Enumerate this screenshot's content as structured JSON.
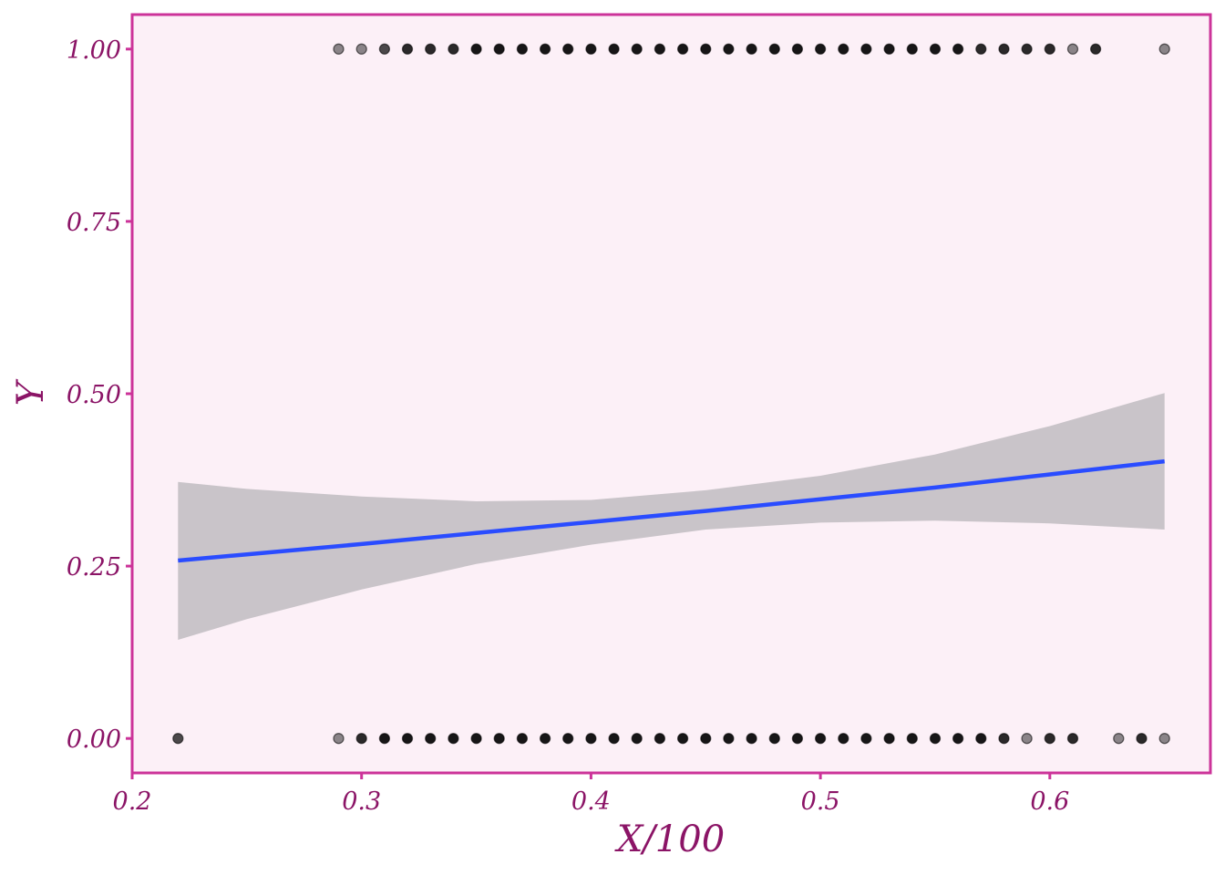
{
  "chart_data": {
    "type": "scatter",
    "xlabel": "X/100",
    "ylabel": "Y",
    "xlim": [
      0.2,
      0.67
    ],
    "ylim": [
      -0.05,
      1.05
    ],
    "x_ticks": [
      0.2,
      0.3,
      0.4,
      0.5,
      0.6
    ],
    "x_tick_labels": [
      "0.2",
      "0.3",
      "0.4",
      "0.5",
      "0.6"
    ],
    "y_ticks": [
      0.0,
      0.25,
      0.5,
      0.75,
      1.0
    ],
    "y_tick_labels": [
      "0.00",
      "0.25",
      "0.50",
      "0.75",
      "1.00"
    ],
    "grid": false,
    "legend": "none",
    "points_y1": [
      {
        "x": 0.29,
        "n": 1
      },
      {
        "x": 0.3,
        "n": 1
      },
      {
        "x": 0.31,
        "n": 2
      },
      {
        "x": 0.32,
        "n": 3
      },
      {
        "x": 0.33,
        "n": 3
      },
      {
        "x": 0.34,
        "n": 3
      },
      {
        "x": 0.35,
        "n": 4
      },
      {
        "x": 0.36,
        "n": 4
      },
      {
        "x": 0.37,
        "n": 4
      },
      {
        "x": 0.38,
        "n": 4
      },
      {
        "x": 0.39,
        "n": 4
      },
      {
        "x": 0.4,
        "n": 4
      },
      {
        "x": 0.41,
        "n": 4
      },
      {
        "x": 0.42,
        "n": 4
      },
      {
        "x": 0.43,
        "n": 4
      },
      {
        "x": 0.44,
        "n": 4
      },
      {
        "x": 0.45,
        "n": 4
      },
      {
        "x": 0.46,
        "n": 4
      },
      {
        "x": 0.47,
        "n": 4
      },
      {
        "x": 0.48,
        "n": 4
      },
      {
        "x": 0.49,
        "n": 4
      },
      {
        "x": 0.5,
        "n": 4
      },
      {
        "x": 0.51,
        "n": 4
      },
      {
        "x": 0.52,
        "n": 4
      },
      {
        "x": 0.53,
        "n": 4
      },
      {
        "x": 0.54,
        "n": 4
      },
      {
        "x": 0.55,
        "n": 4
      },
      {
        "x": 0.56,
        "n": 4
      },
      {
        "x": 0.57,
        "n": 3
      },
      {
        "x": 0.58,
        "n": 3
      },
      {
        "x": 0.59,
        "n": 3
      },
      {
        "x": 0.6,
        "n": 3
      },
      {
        "x": 0.61,
        "n": 1
      },
      {
        "x": 0.62,
        "n": 3
      },
      {
        "x": 0.65,
        "n": 1
      }
    ],
    "points_y0": [
      {
        "x": 0.22,
        "n": 2
      },
      {
        "x": 0.29,
        "n": 1
      },
      {
        "x": 0.3,
        "n": 3
      },
      {
        "x": 0.31,
        "n": 4
      },
      {
        "x": 0.32,
        "n": 4
      },
      {
        "x": 0.33,
        "n": 4
      },
      {
        "x": 0.34,
        "n": 4
      },
      {
        "x": 0.35,
        "n": 4
      },
      {
        "x": 0.36,
        "n": 4
      },
      {
        "x": 0.37,
        "n": 4
      },
      {
        "x": 0.38,
        "n": 4
      },
      {
        "x": 0.39,
        "n": 4
      },
      {
        "x": 0.4,
        "n": 4
      },
      {
        "x": 0.41,
        "n": 4
      },
      {
        "x": 0.42,
        "n": 4
      },
      {
        "x": 0.43,
        "n": 4
      },
      {
        "x": 0.44,
        "n": 4
      },
      {
        "x": 0.45,
        "n": 4
      },
      {
        "x": 0.46,
        "n": 4
      },
      {
        "x": 0.47,
        "n": 4
      },
      {
        "x": 0.48,
        "n": 4
      },
      {
        "x": 0.49,
        "n": 4
      },
      {
        "x": 0.5,
        "n": 4
      },
      {
        "x": 0.51,
        "n": 4
      },
      {
        "x": 0.52,
        "n": 4
      },
      {
        "x": 0.53,
        "n": 4
      },
      {
        "x": 0.54,
        "n": 4
      },
      {
        "x": 0.55,
        "n": 4
      },
      {
        "x": 0.56,
        "n": 4
      },
      {
        "x": 0.57,
        "n": 4
      },
      {
        "x": 0.58,
        "n": 3
      },
      {
        "x": 0.59,
        "n": 1
      },
      {
        "x": 0.6,
        "n": 3
      },
      {
        "x": 0.61,
        "n": 3
      },
      {
        "x": 0.63,
        "n": 1
      },
      {
        "x": 0.64,
        "n": 3
      },
      {
        "x": 0.65,
        "n": 1
      }
    ],
    "fit_line": {
      "x": [
        0.22,
        0.25,
        0.3,
        0.35,
        0.4,
        0.45,
        0.5,
        0.55,
        0.6,
        0.65
      ],
      "y": [
        0.258,
        0.267,
        0.282,
        0.298,
        0.314,
        0.33,
        0.347,
        0.364,
        0.383,
        0.402
      ],
      "lo": [
        0.143,
        0.173,
        0.216,
        0.253,
        0.281,
        0.303,
        0.313,
        0.316,
        0.312,
        0.303
      ],
      "hi": [
        0.372,
        0.362,
        0.351,
        0.344,
        0.346,
        0.36,
        0.381,
        0.412,
        0.453,
        0.501
      ]
    },
    "colors": {
      "panel_bg": "#fcf0f7",
      "border": "#cc3399",
      "text": "#8b1466",
      "points": "#000000",
      "line": "#2a4cff",
      "ribbon": "#c9c4c9"
    }
  }
}
